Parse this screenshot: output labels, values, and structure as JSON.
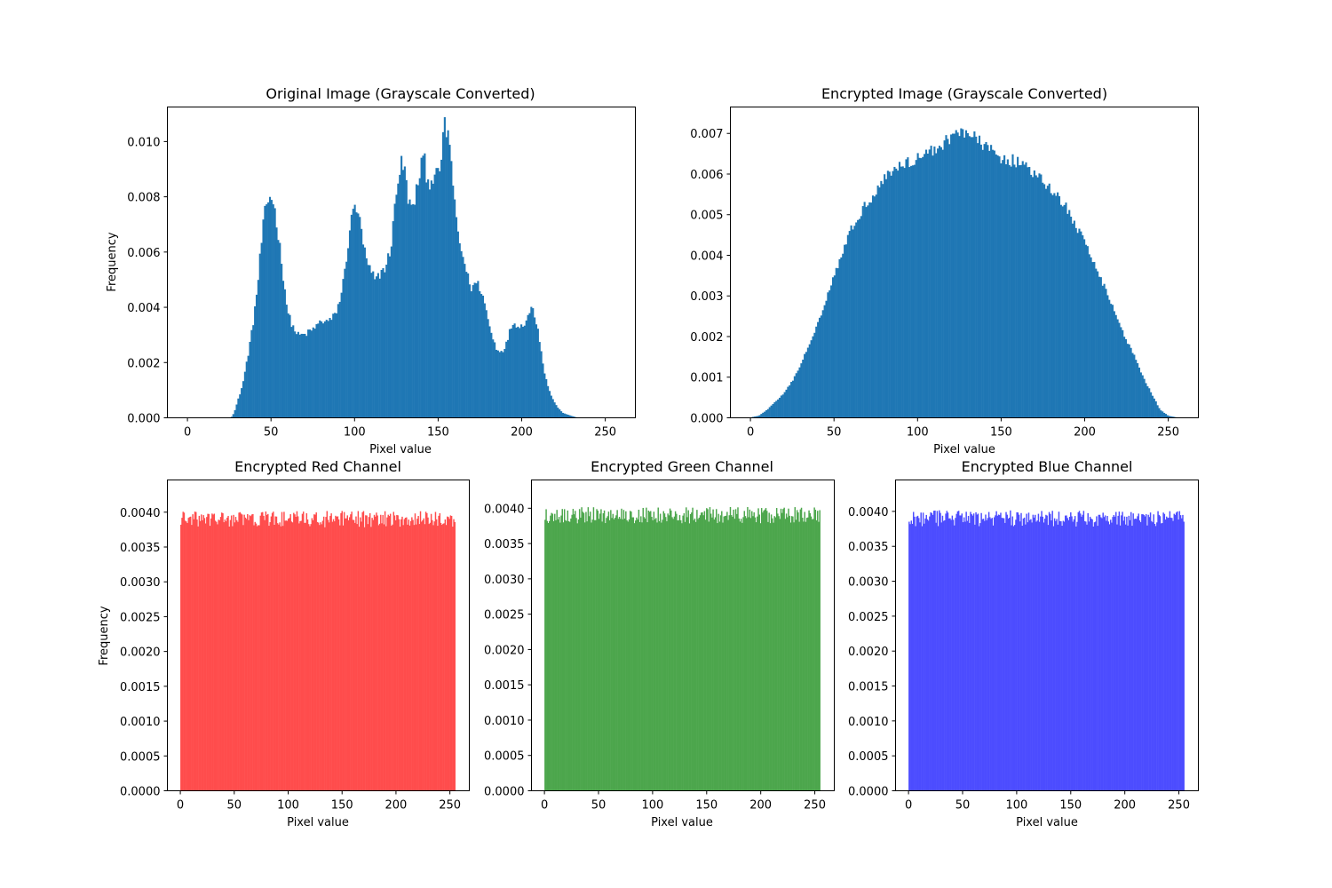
{
  "chart_data": [
    {
      "id": "orig",
      "type": "bar",
      "title": "Original Image (Grayscale Converted)",
      "xlabel": "Pixel value",
      "ylabel": "Frequency",
      "xlim": [
        -12,
        268
      ],
      "ylim": [
        0,
        0.01125
      ],
      "xticks": [
        0,
        50,
        100,
        150,
        200,
        250
      ],
      "yticks": [
        0,
        0.002,
        0.004,
        0.006,
        0.008,
        0.01
      ],
      "ytick_labels": [
        "0.000",
        "0.002",
        "0.004",
        "0.006",
        "0.008",
        "0.010"
      ],
      "color": "#1f77b4",
      "grid": false,
      "bins": 256,
      "curve": [
        [
          0,
          0
        ],
        [
          26,
          0
        ],
        [
          28,
          0.0002
        ],
        [
          30,
          0.0006
        ],
        [
          33,
          0.0012
        ],
        [
          36,
          0.0022
        ],
        [
          39,
          0.0033
        ],
        [
          42,
          0.0048
        ],
        [
          44,
          0.0062
        ],
        [
          46,
          0.0073
        ],
        [
          48,
          0.0078
        ],
        [
          50,
          0.0081
        ],
        [
          52,
          0.0076
        ],
        [
          54,
          0.0068
        ],
        [
          56,
          0.0058
        ],
        [
          58,
          0.0048
        ],
        [
          60,
          0.0038
        ],
        [
          63,
          0.0033
        ],
        [
          66,
          0.003
        ],
        [
          70,
          0.003
        ],
        [
          75,
          0.0032
        ],
        [
          80,
          0.0035
        ],
        [
          85,
          0.0035
        ],
        [
          88,
          0.0037
        ],
        [
          91,
          0.0042
        ],
        [
          94,
          0.0052
        ],
        [
          97,
          0.0068
        ],
        [
          100,
          0.0077
        ],
        [
          102,
          0.0075
        ],
        [
          104,
          0.0067
        ],
        [
          107,
          0.0057
        ],
        [
          110,
          0.0052
        ],
        [
          113,
          0.005
        ],
        [
          116,
          0.0053
        ],
        [
          119,
          0.0055
        ],
        [
          122,
          0.0063
        ],
        [
          124,
          0.0076
        ],
        [
          126,
          0.0087
        ],
        [
          128,
          0.0092
        ],
        [
          130,
          0.0089
        ],
        [
          132,
          0.008
        ],
        [
          134,
          0.0075
        ],
        [
          136,
          0.0079
        ],
        [
          138,
          0.0085
        ],
        [
          140,
          0.0093
        ],
        [
          142,
          0.0092
        ],
        [
          144,
          0.0085
        ],
        [
          146,
          0.0087
        ],
        [
          148,
          0.0088
        ],
        [
          150,
          0.0087
        ],
        [
          152,
          0.0095
        ],
        [
          154,
          0.0106
        ],
        [
          156,
          0.0102
        ],
        [
          158,
          0.0093
        ],
        [
          160,
          0.0075
        ],
        [
          162,
          0.0066
        ],
        [
          164,
          0.006
        ],
        [
          166,
          0.0056
        ],
        [
          168,
          0.005
        ],
        [
          170,
          0.0047
        ],
        [
          173,
          0.0049
        ],
        [
          176,
          0.0046
        ],
        [
          179,
          0.0038
        ],
        [
          182,
          0.003
        ],
        [
          185,
          0.0025
        ],
        [
          188,
          0.0024
        ],
        [
          191,
          0.0027
        ],
        [
          194,
          0.0034
        ],
        [
          197,
          0.0034
        ],
        [
          200,
          0.0033
        ],
        [
          203,
          0.0036
        ],
        [
          206,
          0.004
        ],
        [
          208,
          0.0037
        ],
        [
          210,
          0.0031
        ],
        [
          212,
          0.0023
        ],
        [
          214,
          0.0015
        ],
        [
          217,
          0.0009
        ],
        [
          220,
          0.0005
        ],
        [
          224,
          0.0002
        ],
        [
          228,
          0.0001
        ],
        [
          232,
          3e-05
        ],
        [
          234,
          0
        ],
        [
          255,
          0
        ]
      ],
      "noise": 0.04
    },
    {
      "id": "enc",
      "type": "bar",
      "title": "Encrypted Image (Grayscale Converted)",
      "xlabel": "Pixel value",
      "ylabel": "",
      "xlim": [
        -12,
        268
      ],
      "ylim": [
        0,
        0.00765
      ],
      "xticks": [
        0,
        50,
        100,
        150,
        200,
        250
      ],
      "yticks": [
        0,
        0.001,
        0.002,
        0.003,
        0.004,
        0.005,
        0.006,
        0.007
      ],
      "ytick_labels": [
        "0.000",
        "0.001",
        "0.002",
        "0.003",
        "0.004",
        "0.005",
        "0.006",
        "0.007"
      ],
      "color": "#1f77b4",
      "grid": false,
      "bins": 256,
      "curve": [
        [
          0,
          1e-05
        ],
        [
          5,
          5e-05
        ],
        [
          10,
          0.0002
        ],
        [
          15,
          0.0004
        ],
        [
          20,
          0.0006
        ],
        [
          25,
          0.0009
        ],
        [
          30,
          0.0013
        ],
        [
          35,
          0.0018
        ],
        [
          40,
          0.0023
        ],
        [
          45,
          0.0029
        ],
        [
          50,
          0.0035
        ],
        [
          55,
          0.0041
        ],
        [
          60,
          0.0046
        ],
        [
          65,
          0.005
        ],
        [
          70,
          0.0053
        ],
        [
          75,
          0.0056
        ],
        [
          80,
          0.0059
        ],
        [
          85,
          0.0061
        ],
        [
          90,
          0.0062
        ],
        [
          100,
          0.0064
        ],
        [
          110,
          0.0066
        ],
        [
          120,
          0.0069
        ],
        [
          125,
          0.0071
        ],
        [
          130,
          0.007
        ],
        [
          140,
          0.0067
        ],
        [
          150,
          0.0064
        ],
        [
          160,
          0.0063
        ],
        [
          170,
          0.006
        ],
        [
          180,
          0.0056
        ],
        [
          185,
          0.0054
        ],
        [
          190,
          0.0051
        ],
        [
          195,
          0.0047
        ],
        [
          200,
          0.0043
        ],
        [
          205,
          0.0039
        ],
        [
          210,
          0.0034
        ],
        [
          215,
          0.0029
        ],
        [
          220,
          0.0024
        ],
        [
          225,
          0.0019
        ],
        [
          230,
          0.0015
        ],
        [
          235,
          0.001
        ],
        [
          240,
          0.0006
        ],
        [
          245,
          0.0002
        ],
        [
          250,
          5e-05
        ],
        [
          255,
          1e-05
        ]
      ],
      "noise": 0.025
    },
    {
      "id": "red",
      "type": "bar",
      "title": "Encrypted Red Channel",
      "xlabel": "Pixel value",
      "ylabel": "Frequency",
      "xlim": [
        -12,
        268
      ],
      "ylim": [
        0,
        0.0044625
      ],
      "xticks": [
        0,
        50,
        100,
        150,
        200,
        250
      ],
      "yticks": [
        0,
        0.0005,
        0.001,
        0.0015,
        0.002,
        0.0025,
        0.003,
        0.0035,
        0.004
      ],
      "ytick_labels": [
        "0.0000",
        "0.0005",
        "0.0010",
        "0.0015",
        "0.0020",
        "0.0025",
        "0.0030",
        "0.0035",
        "0.0040"
      ],
      "color": "#ff4c4c",
      "grid": false,
      "bins": 256,
      "curve": [
        [
          0,
          0.0039
        ],
        [
          255,
          0.0039
        ]
      ],
      "noise": 0.03
    },
    {
      "id": "green",
      "type": "bar",
      "title": "Encrypted Green Channel",
      "xlabel": "Pixel value",
      "ylabel": "",
      "xlim": [
        -12,
        268
      ],
      "ylim": [
        0,
        0.0044
      ],
      "xticks": [
        0,
        50,
        100,
        150,
        200,
        250
      ],
      "yticks": [
        0,
        0.0005,
        0.001,
        0.0015,
        0.002,
        0.0025,
        0.003,
        0.0035,
        0.004
      ],
      "ytick_labels": [
        "0.0000",
        "0.0005",
        "0.0010",
        "0.0015",
        "0.0020",
        "0.0025",
        "0.0030",
        "0.0035",
        "0.0040"
      ],
      "color": "#4ca64c",
      "grid": false,
      "bins": 256,
      "curve": [
        [
          0,
          0.0039
        ],
        [
          255,
          0.0039
        ]
      ],
      "noise": 0.03
    },
    {
      "id": "blue",
      "type": "bar",
      "title": "Encrypted Blue Channel",
      "xlabel": "Pixel value",
      "ylabel": "",
      "xlim": [
        -12,
        268
      ],
      "ylim": [
        0,
        0.00445
      ],
      "xticks": [
        0,
        50,
        100,
        150,
        200,
        250
      ],
      "yticks": [
        0,
        0.0005,
        0.001,
        0.0015,
        0.002,
        0.0025,
        0.003,
        0.0035,
        0.004
      ],
      "ytick_labels": [
        "0.0000",
        "0.0005",
        "0.0010",
        "0.0015",
        "0.0020",
        "0.0025",
        "0.0030",
        "0.0035",
        "0.0040"
      ],
      "color": "#4c4cff",
      "grid": false,
      "bins": 256,
      "curve": [
        [
          0,
          0.0039
        ],
        [
          255,
          0.0039
        ]
      ],
      "noise": 0.03
    }
  ]
}
